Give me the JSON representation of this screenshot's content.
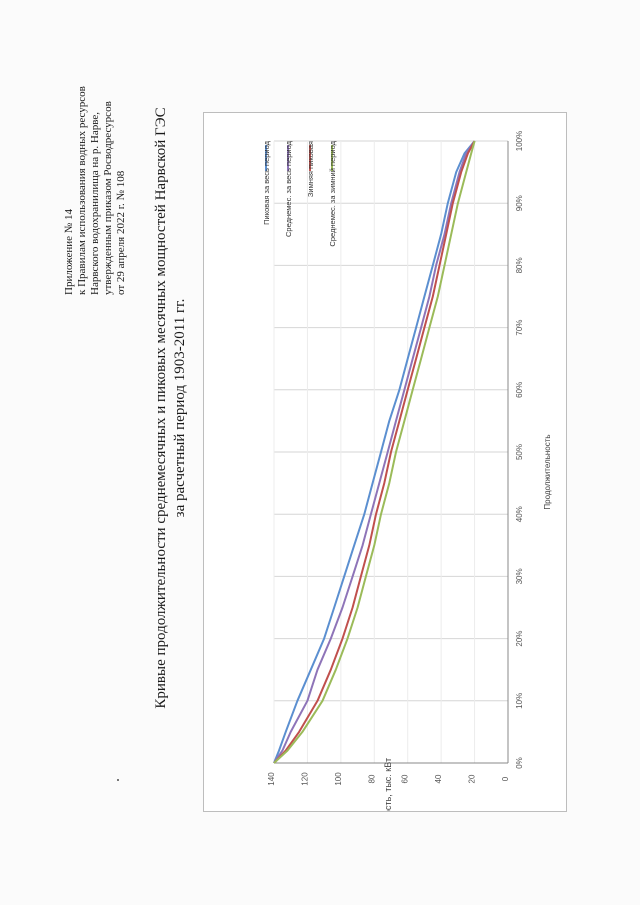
{
  "header": {
    "line1": "Приложение № 14",
    "line2": "к Правилам использования водных ресурсов",
    "line3": "Нарвского водохранилища на р. Нарве,",
    "line4": "утвержденным приказом Росводресурсов",
    "line5": "от 29 апреля 2022 г. № 108"
  },
  "title": {
    "line1": "Кривые продолжительности среднемесячных и пиковых месячных мощностей Нарвской ГЭС",
    "line2": "за расчетный период 1903-2011 гг."
  },
  "chart_data": {
    "type": "line",
    "xlabel": "Продолжительность",
    "ylabel": "Мощность, тыс. кВт",
    "xlim": [
      0,
      100
    ],
    "ylim": [
      0,
      140
    ],
    "x_ticks": [
      "0%",
      "10%",
      "20%",
      "30%",
      "40%",
      "50%",
      "60%",
      "70%",
      "80%",
      "90%",
      "100%"
    ],
    "y_ticks": [
      "0",
      "20",
      "40",
      "60",
      "80",
      "100",
      "120",
      "140"
    ],
    "grid": true,
    "legend_position": "top-right",
    "x": [
      0,
      2,
      5,
      10,
      15,
      20,
      25,
      30,
      35,
      40,
      45,
      50,
      55,
      60,
      65,
      70,
      75,
      80,
      85,
      90,
      95,
      98,
      100
    ],
    "series": [
      {
        "name": "Пиковая за весь период",
        "color": "#5b8fd0",
        "values": [
          140,
          137,
          133,
          126,
          118,
          110,
          104,
          98,
          92,
          86,
          81,
          76,
          71,
          65,
          60,
          55,
          50,
          45,
          40,
          36,
          31,
          26,
          20
        ]
      },
      {
        "name": "Среднемес. за весь период",
        "color": "#8e74b8",
        "values": [
          140,
          135,
          130,
          120,
          114,
          106,
          99,
          93,
          87,
          82,
          77,
          72,
          67,
          62,
          57,
          52,
          47,
          43,
          38,
          34,
          29,
          25,
          20
        ]
      },
      {
        "name": "Зимняя пиковая",
        "color": "#c0504d",
        "values": [
          140,
          133,
          125,
          114,
          106,
          99,
          93,
          88,
          83,
          79,
          74,
          70,
          65,
          60,
          55,
          50,
          45,
          41,
          37,
          33,
          28,
          24,
          20
        ]
      },
      {
        "name": "Среднемес. за зимний период",
        "color": "#9bbb59",
        "values": [
          140,
          132,
          123,
          111,
          103,
          96,
          90,
          85,
          80,
          76,
          71,
          67,
          62,
          57,
          52,
          47,
          42,
          38,
          34,
          30,
          25,
          22,
          20
        ]
      }
    ]
  }
}
